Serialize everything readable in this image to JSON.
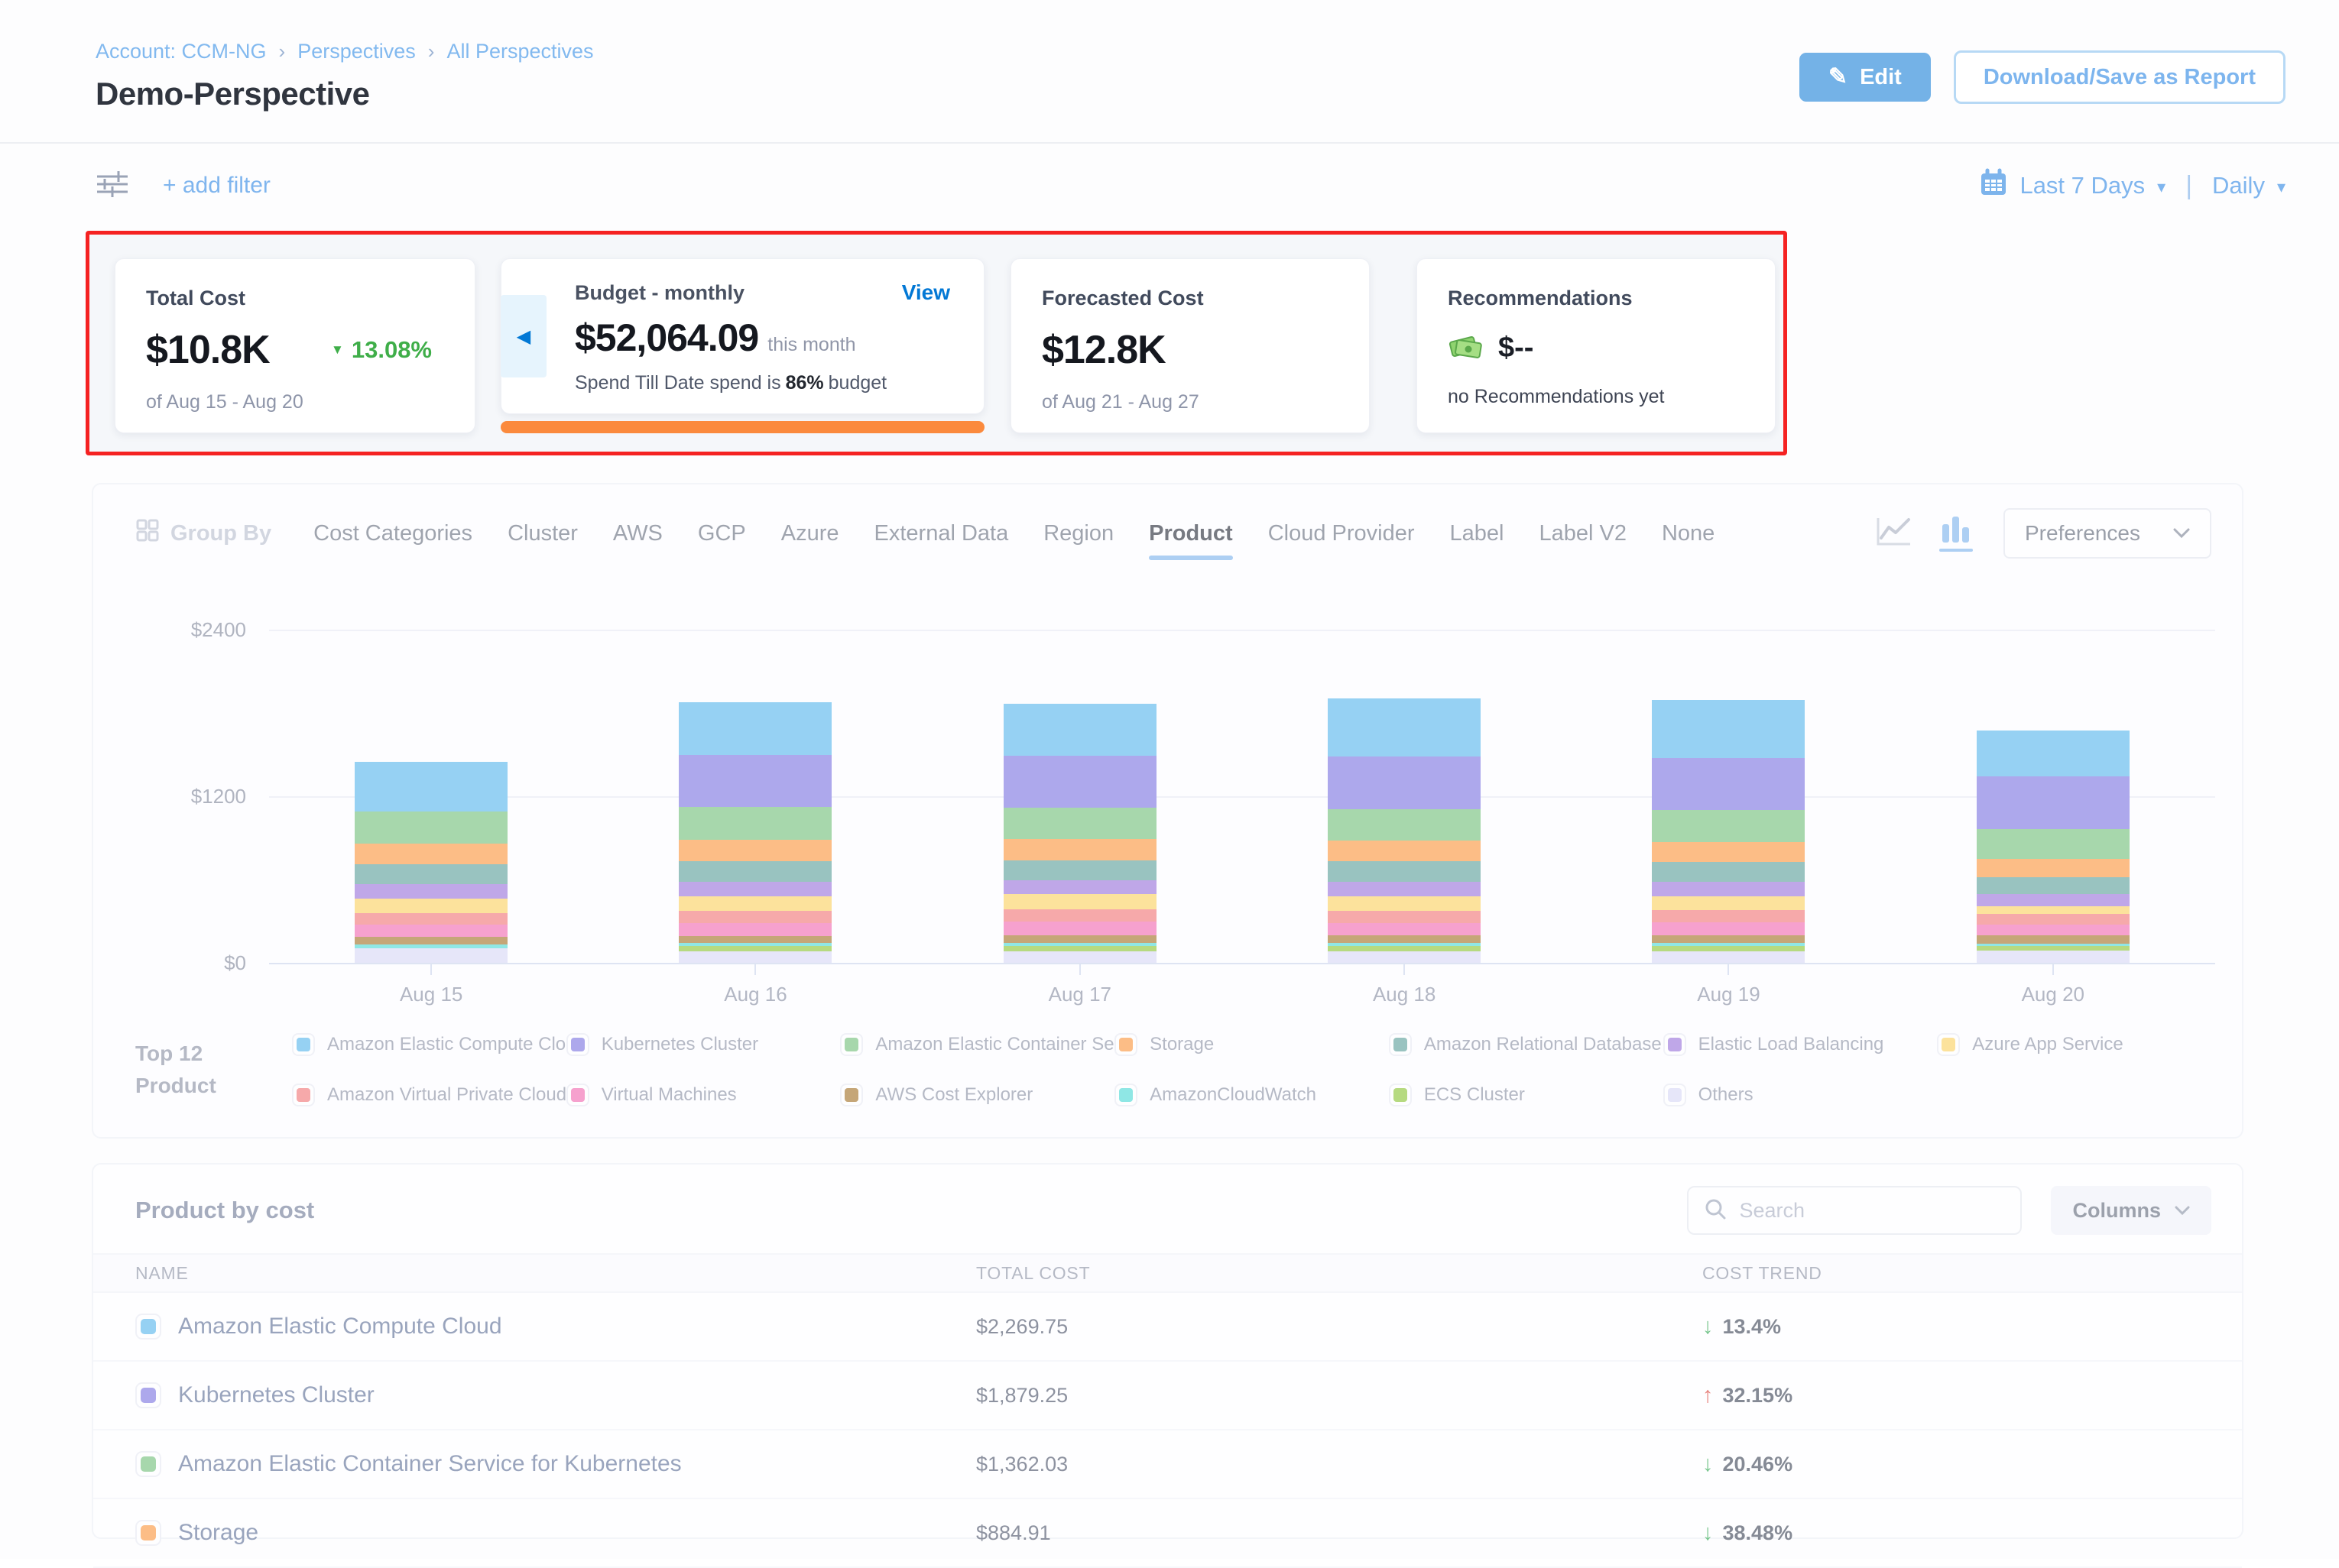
{
  "header": {
    "breadcrumb": {
      "account": "Account: CCM-NG",
      "section": "Perspectives",
      "page": "All Perspectives",
      "separator": "›"
    },
    "title": "Demo-Perspective",
    "edit_button": "Edit",
    "download_button": "Download/Save as Report"
  },
  "filter_bar": {
    "add_filter": "+ add filter",
    "date_range": "Last 7 Days",
    "granularity": "Daily"
  },
  "summary_cards": {
    "highlight_border_color": "#f52222",
    "total_cost": {
      "title": "Total Cost",
      "value": "$10.8K",
      "trend": "13.08%",
      "trend_direction": "down",
      "trend_color": "#3fae49",
      "subtitle": "of Aug 15 - Aug 20"
    },
    "budget": {
      "title": "Budget - monthly",
      "view_link": "View",
      "value": "$52,064.09",
      "value_suffix": "this month",
      "subtitle_prefix": "Spend Till Date spend is",
      "subtitle_pct": "86%",
      "subtitle_suffix": "budget",
      "bar_color": "#fb8a3d"
    },
    "forecasted_cost": {
      "title": "Forecasted Cost",
      "value": "$12.8K",
      "subtitle": "of Aug 21 - Aug 27"
    },
    "recommendations": {
      "title": "Recommendations",
      "icon": "money-notes-icon",
      "value": "$--",
      "subtitle": "no Recommendations yet"
    }
  },
  "group_by": {
    "label": "Group By",
    "tabs": [
      "Cost Categories",
      "Cluster",
      "AWS",
      "GCP",
      "Azure",
      "External Data",
      "Region",
      "Product",
      "Cloud Provider",
      "Label",
      "Label V2",
      "None"
    ],
    "active_tab": "Product",
    "accent_color": "#7db4ec",
    "preferences_label": "Preferences"
  },
  "chart_data": {
    "type": "bar",
    "stacked": true,
    "title": "",
    "xlabel": "",
    "ylabel": "",
    "categories": [
      "Aug 15",
      "Aug 16",
      "Aug 17",
      "Aug 18",
      "Aug 19",
      "Aug 20"
    ],
    "ylim": [
      0,
      2400
    ],
    "yticks": [
      "$0",
      "$1200",
      "$2400"
    ],
    "grid": true,
    "legend_position": "bottom",
    "series_top_to_bottom": [
      {
        "name": "Amazon Elastic Compute Cloud",
        "color": "#57b6ec",
        "values": [
          360,
          380,
          375,
          420,
          415,
          330
        ]
      },
      {
        "name": "Kubernetes Cluster",
        "color": "#7d75e0",
        "values": [
          0,
          375,
          370,
          380,
          375,
          380
        ]
      },
      {
        "name": "Amazon Elastic Container Service",
        "color": "#73c079",
        "values": [
          230,
          235,
          230,
          225,
          230,
          215
        ]
      },
      {
        "name": "Storage",
        "color": "#fc963d",
        "values": [
          150,
          155,
          150,
          150,
          145,
          135
        ]
      },
      {
        "name": "Amazon Relational Database Service",
        "color": "#5ca099",
        "values": [
          140,
          150,
          145,
          150,
          145,
          120
        ]
      },
      {
        "name": "Elastic Load Balancing",
        "color": "#9973da",
        "values": [
          105,
          100,
          100,
          100,
          100,
          90
        ]
      },
      {
        "name": "Azure App Service",
        "color": "#fcd25f",
        "values": [
          105,
          105,
          110,
          105,
          100,
          55
        ]
      },
      {
        "name": "Amazon Virtual Private Cloud",
        "color": "#f27777",
        "values": [
          85,
          90,
          90,
          90,
          90,
          75
        ]
      },
      {
        "name": "Virtual Machines",
        "color": "#f269b0",
        "values": [
          90,
          95,
          95,
          90,
          95,
          75
        ]
      },
      {
        "name": "AWS Cost Explorer",
        "color": "#a37226",
        "values": [
          55,
          50,
          55,
          55,
          55,
          60
        ]
      },
      {
        "name": "AmazonCloudWatch",
        "color": "#4cdad5",
        "values": [
          25,
          22,
          25,
          22,
          22,
          20
        ]
      },
      {
        "name": "ECS Cluster",
        "color": "#8cc632",
        "values": [
          0,
          35,
          35,
          35,
          35,
          30
        ]
      },
      {
        "name": "Others",
        "color": "#d8d8f5",
        "values": [
          105,
          85,
          85,
          85,
          85,
          90
        ]
      }
    ]
  },
  "legend": {
    "title": "Top 12 Product",
    "items": [
      {
        "label": "Amazon Elastic Compute Clo...",
        "color": "#57b6ec"
      },
      {
        "label": "Kubernetes Cluster",
        "color": "#7d75e0"
      },
      {
        "label": "Amazon Elastic Container Se...",
        "color": "#73c079"
      },
      {
        "label": "Storage",
        "color": "#fc963d"
      },
      {
        "label": "Amazon Relational Database ...",
        "color": "#5ca099"
      },
      {
        "label": "Elastic Load Balancing",
        "color": "#9973da"
      },
      {
        "label": "Azure App Service",
        "color": "#fcd25f"
      },
      {
        "label": "Amazon Virtual Private Cloud",
        "color": "#f27777"
      },
      {
        "label": "Virtual Machines",
        "color": "#f269b0"
      },
      {
        "label": "AWS Cost Explorer",
        "color": "#a37226"
      },
      {
        "label": "AmazonCloudWatch",
        "color": "#4cdad5"
      },
      {
        "label": "ECS Cluster",
        "color": "#8cc632"
      },
      {
        "label": "Others",
        "color": "#d8d8f5"
      }
    ]
  },
  "table": {
    "title": "Product by cost",
    "search_placeholder": "Search",
    "columns_button": "Columns",
    "headers": [
      "NAME",
      "TOTAL COST",
      "COST TREND"
    ],
    "trend_down_color": "#28a549",
    "trend_up_color": "#da3c30",
    "rows": [
      {
        "name": "Amazon Elastic Compute Cloud",
        "color": "#57b6ec",
        "total_cost": "$2,269.75",
        "cost_trend": "13.4%",
        "trend_direction": "down"
      },
      {
        "name": "Kubernetes Cluster",
        "color": "#7d75e0",
        "total_cost": "$1,879.25",
        "cost_trend": "32.15%",
        "trend_direction": "up"
      },
      {
        "name": "Amazon Elastic Container Service for Kubernetes",
        "color": "#73c079",
        "total_cost": "$1,362.03",
        "cost_trend": "20.46%",
        "trend_direction": "down"
      },
      {
        "name": "Storage",
        "color": "#fc963d",
        "total_cost": "$884.91",
        "cost_trend": "38.48%",
        "trend_direction": "down"
      }
    ]
  }
}
